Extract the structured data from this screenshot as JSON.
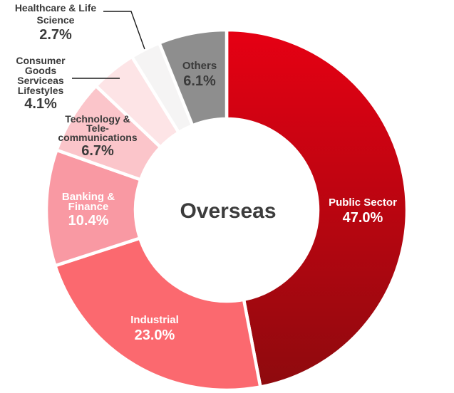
{
  "center_title": "Overseas",
  "labels": {
    "public_sector": {
      "name": "Public Sector",
      "pct": "47.0%"
    },
    "industrial": {
      "name": "Industrial",
      "pct": "23.0%"
    },
    "banking": {
      "name": "Banking &\nFinance",
      "pct": "10.4%"
    },
    "technology": {
      "name": "Technology &\nTele-\ncommunications",
      "pct": "6.7%"
    },
    "consumer": {
      "name": "Consumer\nGoods\nServiceas\nLifestyles",
      "pct": "4.1%"
    },
    "healthcare": {
      "name": "Healthcare & Life\nScience",
      "pct": "2.7%"
    },
    "others": {
      "name": "Others",
      "pct": "6.1%"
    }
  },
  "colors": {
    "public_sector_start": "#e60013",
    "public_sector_end": "#8e0a0e",
    "industrial": "#fb696f",
    "banking": "#f999a3",
    "technology": "#fbc5ca",
    "consumer": "#fde4e6",
    "healthcare": "#f5f4f4",
    "others": "#8e8e8e",
    "dark_text": "#3a3a3a",
    "light_text": "#ffffff",
    "leader_line": "#1c1c1c"
  },
  "chart_data": {
    "type": "pie",
    "subtype": "donut",
    "title": "Overseas",
    "start_angle_deg": 0,
    "direction": "clockwise",
    "inner_radius_ratio": 0.5,
    "segments": [
      {
        "label": "Public Sector",
        "value": 47.0,
        "color_start": "#e60013",
        "color_end": "#8e0a0e",
        "label_position": "inside",
        "label_color": "#ffffff"
      },
      {
        "label": "Industrial",
        "value": 23.0,
        "color": "#fb696f",
        "label_position": "inside",
        "label_color": "#ffffff"
      },
      {
        "label": "Banking & Finance",
        "value": 10.4,
        "color": "#f999a3",
        "label_position": "inside",
        "label_color": "#ffffff"
      },
      {
        "label": "Technology & Tele-communications",
        "value": 6.7,
        "color": "#fbc5ca",
        "label_position": "outside",
        "label_color": "#3a3a3a"
      },
      {
        "label": "Consumer Goods Serviceas Lifestyles",
        "value": 4.1,
        "color": "#fde4e6",
        "label_position": "outside",
        "label_color": "#3a3a3a"
      },
      {
        "label": "Healthcare & Life Science",
        "value": 2.7,
        "color": "#f5f4f4",
        "label_position": "outside",
        "label_color": "#3a3a3a"
      },
      {
        "label": "Others",
        "value": 6.1,
        "color": "#8e8e8e",
        "label_position": "inside",
        "label_color": "#3a3a3a"
      }
    ]
  }
}
